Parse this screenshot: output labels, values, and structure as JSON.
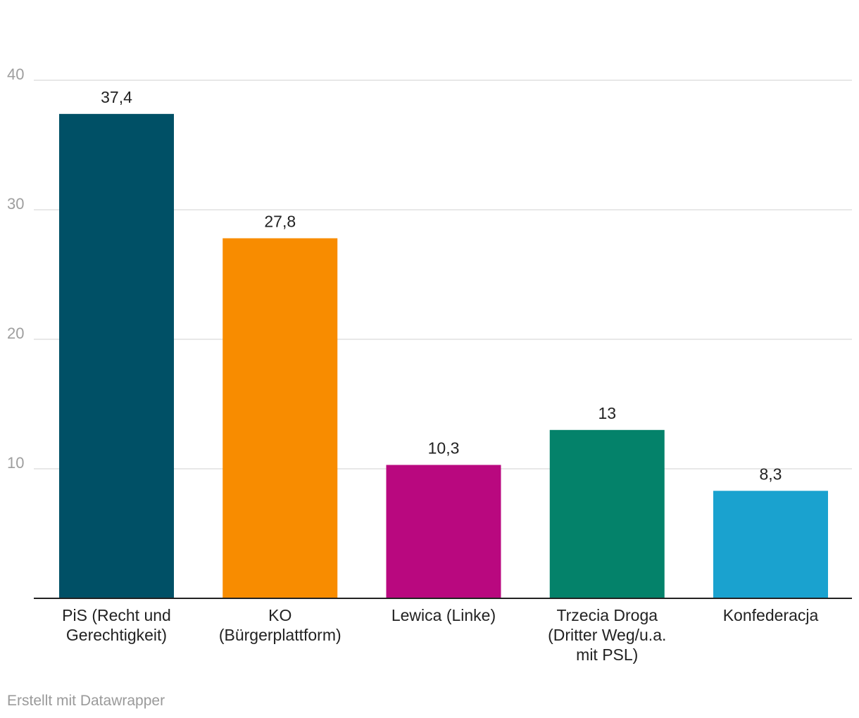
{
  "chart_data": {
    "type": "bar",
    "categories": [
      [
        "PiS (Recht und",
        "Gerechtigkeit)"
      ],
      [
        "KO",
        "(Bürgerplattform)"
      ],
      [
        "Lewica (Linke)"
      ],
      [
        "Trzecia Droga",
        "(Dritter Weg/u.a.",
        "mit PSL)"
      ],
      [
        "Konfederacja"
      ]
    ],
    "values": [
      37.4,
      27.8,
      10.3,
      13,
      8.3
    ],
    "value_labels": [
      "37,4",
      "27,8",
      "10,3",
      "13",
      "8,3"
    ],
    "colors": [
      "#005066",
      "#f88c00",
      "#b9087f",
      "#04826a",
      "#1aa2cf"
    ],
    "yticks": [
      10,
      20,
      30,
      40
    ],
    "ylim": [
      0,
      40
    ],
    "title": "",
    "xlabel": "",
    "ylabel": "",
    "grid": true
  },
  "footer": {
    "credit": "Erstellt mit Datawrapper"
  }
}
